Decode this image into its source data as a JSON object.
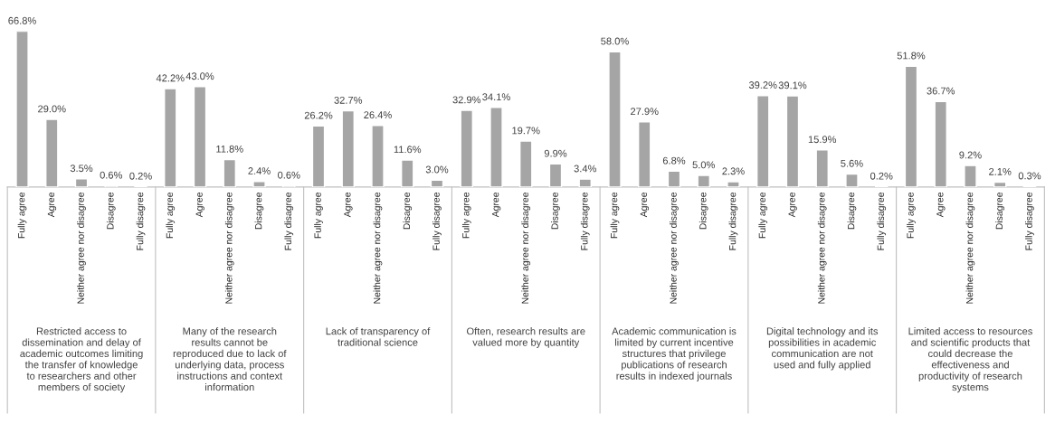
{
  "chart_data": {
    "type": "bar",
    "categories": [
      "Fully agree",
      "Agree",
      "Neither agree nor disagree",
      "Disagree",
      "Fully disagree",
      "Fully agree",
      "Agree",
      "Neither agree nor disagree",
      "Disagree",
      "Fully disagree",
      "Fully agree",
      "Agree",
      "Neither agree nor disagree",
      "Disagree",
      "Fully disagree",
      "Fully agree",
      "Agree",
      "Neither agree nor disagree",
      "Disagree",
      "Fully disagree",
      "Fully agree",
      "Agree",
      "Neither agree nor disagree",
      "Disagree",
      "Fully disagree",
      "Fully agree",
      "Agree",
      "Neither agree nor disagree",
      "Disagree",
      "Fully disagree",
      "Fully agree",
      "Agree",
      "Neither agree nor disagree",
      "Disagree",
      "Fully disagree"
    ],
    "values": [
      66.8,
      29.0,
      3.5,
      0.6,
      0.2,
      42.2,
      43.0,
      11.8,
      2.4,
      0.6,
      26.2,
      32.7,
      26.4,
      11.6,
      3.0,
      32.9,
      34.1,
      19.7,
      9.9,
      3.4,
      58.0,
      27.9,
      6.8,
      5.0,
      2.3,
      39.2,
      39.1,
      15.9,
      5.6,
      0.2,
      51.8,
      36.7,
      9.2,
      2.1,
      0.3
    ],
    "value_labels": [
      "66.8%",
      "29.0%",
      "3.5%",
      "0.6%",
      "0.2%",
      "42.2%",
      "43.0%",
      "11.8%",
      "2.4%",
      "0.6%",
      "26.2%",
      "32.7%",
      "26.4%",
      "11.6%",
      "3.0%",
      "32.9%",
      "34.1%",
      "19.7%",
      "9.9%",
      "3.4%",
      "58.0%",
      "27.9%",
      "6.8%",
      "5.0%",
      "2.3%",
      "39.2%",
      "39.1%",
      "15.9%",
      "5.6%",
      "0.2%",
      "51.8%",
      "36.7%",
      "9.2%",
      "2.1%",
      "0.3%"
    ],
    "color": "#a5a5a5",
    "annotations": [
      "Restricted access to\ndissemination and delay of\nacademic outcomes limiting\nthe transfer of knowledge\nto researchers and other\nmembers of society",
      "Many of the research\nresults cannot be\nreproduced due to lack of\nunderlying data, process\ninstructions and context\ninformation",
      "Lack of transparency of\ntraditional science",
      "Often, research results are\nvalued more by quantity",
      "Academic communication is\nlimited by current incentive\nstructures that privilege\npublications of research\nresults in indexed journals",
      "Digital technology and its\npossibilities in academic\ncommunication are not\nused and fully applied",
      "Limited access to resources\nand scientific products that\ncould decrease the\neffectiveness and\nproductivity of research\nsystems"
    ],
    "grid": false,
    "legend": false
  }
}
